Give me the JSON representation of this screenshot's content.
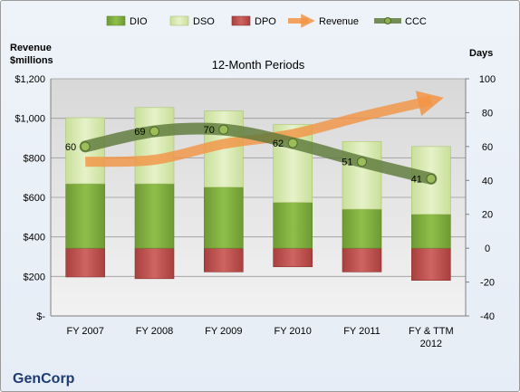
{
  "chart_data": {
    "type": "bar",
    "title": "12-Month Periods",
    "company": "GenCorp",
    "left_axis": {
      "label_line1": "Revenue",
      "label_line2": "$millions",
      "ticks": [
        "$-",
        "$200",
        "$400",
        "$600",
        "$800",
        "$1,000",
        "$1,200"
      ],
      "range": [
        0,
        1200
      ]
    },
    "right_axis": {
      "label": "Days",
      "ticks": [
        "-40",
        "-20",
        "0",
        "20",
        "40",
        "60",
        "80",
        "100"
      ],
      "range": [
        -40,
        100
      ]
    },
    "categories": [
      [
        "FY 2007"
      ],
      [
        "FY 2008"
      ],
      [
        "FY 2009"
      ],
      [
        "FY 2010"
      ],
      [
        "FY 2011"
      ],
      [
        "FY & TTM",
        "2012"
      ]
    ],
    "legend": [
      "DIO",
      "DSO",
      "DPO",
      "Revenue",
      "CCC"
    ],
    "series": [
      {
        "name": "DIO",
        "axis": "right",
        "color": "#7cab3c",
        "values": [
          38,
          38,
          36,
          27,
          23,
          20
        ]
      },
      {
        "name": "DSO",
        "axis": "right",
        "color": "#d7e8b0",
        "values": [
          39,
          45,
          45,
          46,
          40,
          40
        ]
      },
      {
        "name": "DPO",
        "axis": "right",
        "color": "#c0504d",
        "values": [
          -17,
          -18,
          -14,
          -11,
          -14,
          -19
        ]
      },
      {
        "name": "Revenue",
        "axis": "left",
        "color": "#f29444",
        "values": [
          780,
          790,
          870,
          920,
          1010,
          1090
        ]
      },
      {
        "name": "CCC",
        "axis": "right",
        "color": "#5e7a3a",
        "values": [
          60,
          69,
          70,
          62,
          51,
          41
        ]
      }
    ],
    "ccc_labels": [
      "60",
      "69",
      "70",
      "62",
      "51",
      "41"
    ]
  }
}
